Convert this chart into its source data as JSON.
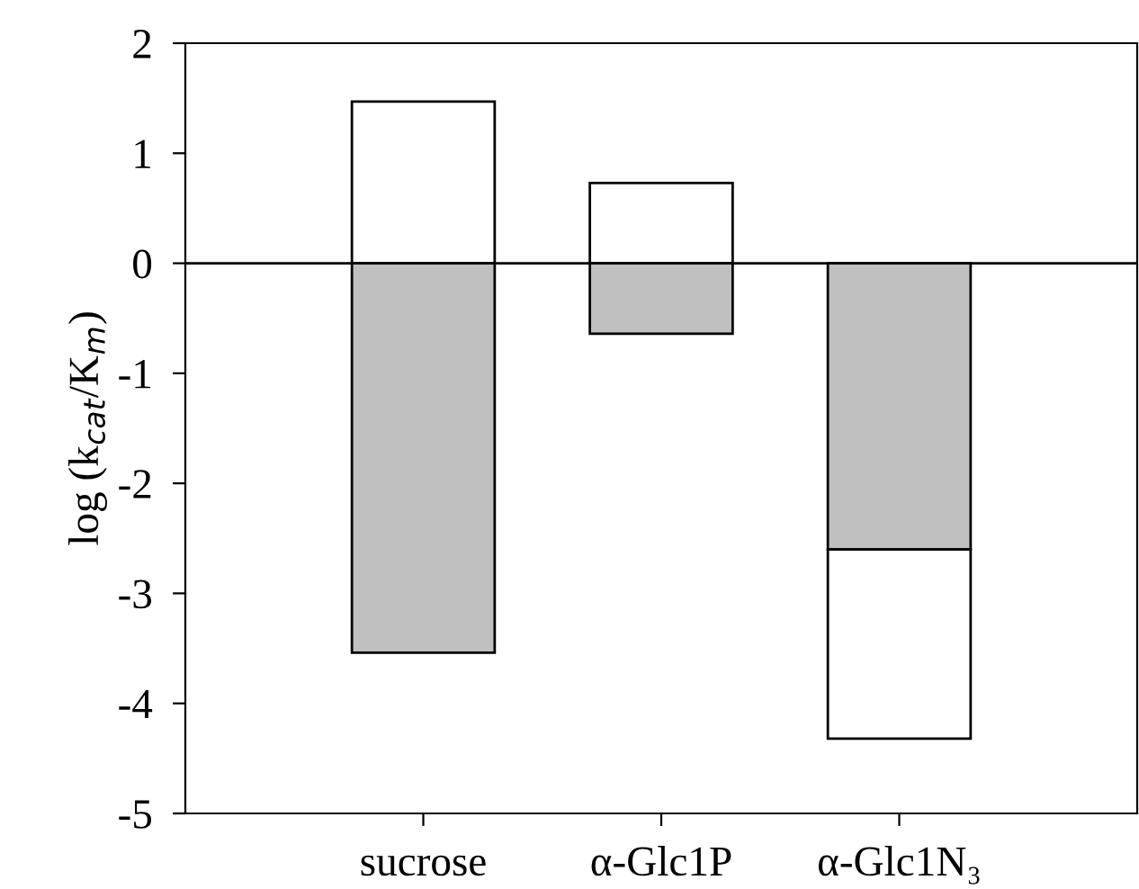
{
  "chart_data": {
    "type": "bar",
    "ylabel": "log (k$_{cat}$/K$_{m}$)",
    "categories": [
      "sucrose",
      "α-Glc1P",
      "α-Glc1N₃"
    ],
    "series": [
      {
        "color": "#c0c0c0",
        "values": [
          -3.54,
          -0.64,
          -2.6
        ]
      },
      {
        "color": "#ffffff",
        "values": [
          1.47,
          0.73,
          -1.72
        ]
      }
    ],
    "stacked": true,
    "ylim": [
      -5,
      2
    ],
    "yticks": [
      -5,
      -4,
      -3,
      -2,
      -1,
      0,
      1,
      2
    ],
    "ref_lines": [
      {
        "axis": "y",
        "value": 0,
        "color": "#000000"
      }
    ],
    "grid": false,
    "legend": false
  }
}
